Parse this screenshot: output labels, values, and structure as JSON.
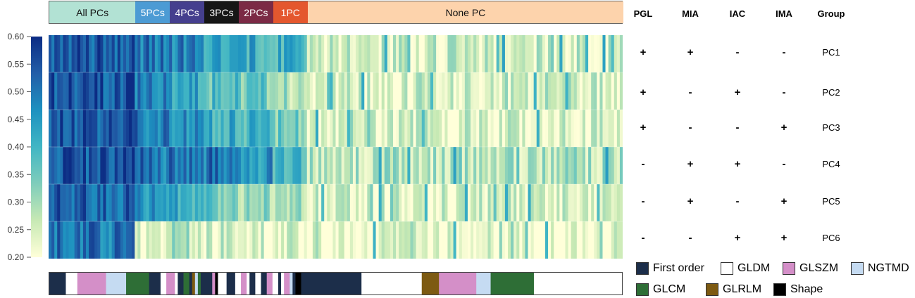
{
  "group_bar": [
    {
      "label": "All PCs",
      "color": "#b2e2d4",
      "start": 0,
      "end": 30,
      "dark": false
    },
    {
      "label": "5PCs",
      "color": "#4c9bd4",
      "start": 30,
      "end": 42,
      "dark": true
    },
    {
      "label": "4PCs",
      "color": "#453f8e",
      "start": 42,
      "end": 54,
      "dark": true
    },
    {
      "label": "3PCs",
      "color": "#161616",
      "start": 54,
      "end": 66,
      "dark": true
    },
    {
      "label": "2PCs",
      "color": "#7b2a45",
      "start": 66,
      "end": 78,
      "dark": true
    },
    {
      "label": "1PC",
      "color": "#e4572e",
      "start": 78,
      "end": 90,
      "dark": true
    },
    {
      "label": "None PC",
      "color": "#fdd3ac",
      "start": 90,
      "end": 200,
      "dark": false
    }
  ],
  "table": {
    "headers": [
      "PGL",
      "MIA",
      "IAC",
      "IMA",
      "Group"
    ],
    "rows": [
      {
        "PGL": "+",
        "MIA": "+",
        "IAC": "-",
        "IMA": "-",
        "Group": "PC1"
      },
      {
        "PGL": "+",
        "MIA": "-",
        "IAC": "+",
        "IMA": "-",
        "Group": "PC2"
      },
      {
        "PGL": "+",
        "MIA": "-",
        "IAC": "-",
        "IMA": "+",
        "Group": "PC3"
      },
      {
        "PGL": "-",
        "MIA": "+",
        "IAC": "+",
        "IMA": "-",
        "Group": "PC4"
      },
      {
        "PGL": "-",
        "MIA": "+",
        "IAC": "-",
        "IMA": "+",
        "Group": "PC5"
      },
      {
        "PGL": "-",
        "MIA": "-",
        "IAC": "+",
        "IMA": "+",
        "Group": "PC6"
      }
    ]
  },
  "legend": [
    {
      "label": "First order",
      "color": "#1c2e4a"
    },
    {
      "label": "GLDM",
      "color": "#ffffff"
    },
    {
      "label": "GLSZM",
      "color": "#d48fc8"
    },
    {
      "label": "NGTMD",
      "color": "#c5dbf2"
    },
    {
      "label": "GLCM",
      "color": "#2e6e36"
    },
    {
      "label": "GLRLM",
      "color": "#7d5a12"
    },
    {
      "label": "Shape",
      "color": "#000000"
    }
  ],
  "chart_data": {
    "type": "heatmap",
    "rows": [
      "PC1",
      "PC2",
      "PC3",
      "PC4",
      "PC5",
      "PC6"
    ],
    "n_features": 200,
    "colorbar": {
      "ticks": [
        "0.60",
        "0.55",
        "0.50",
        "0.45",
        "0.40",
        "0.35",
        "0.30",
        "0.25",
        "0.20"
      ],
      "range": [
        0.2,
        0.6
      ],
      "colors": [
        "#ffffd9",
        "#c7e9b4",
        "#7fcdbb",
        "#41b6c4",
        "#1d91c0",
        "#225ea8",
        "#0c2c84"
      ]
    },
    "group_sizes": [
      30,
      12,
      12,
      12,
      12,
      12,
      110
    ],
    "row_means": {
      "All PCs": [
        0.55,
        0.55,
        0.55,
        0.55,
        0.53,
        0.5
      ],
      "5PCs": [
        0.5,
        0.5,
        0.5,
        0.5,
        0.45,
        0.25
      ],
      "4PCs": [
        0.48,
        0.42,
        0.47,
        0.5,
        0.42,
        0.28
      ],
      "3PCs": [
        0.45,
        0.38,
        0.42,
        0.5,
        0.35,
        0.25
      ],
      "2PCs": [
        0.42,
        0.35,
        0.4,
        0.45,
        0.32,
        0.24
      ],
      "1PC": [
        0.4,
        0.3,
        0.35,
        0.4,
        0.28,
        0.23
      ],
      "None PC": [
        0.25,
        0.24,
        0.24,
        0.28,
        0.24,
        0.22
      ]
    },
    "category_blocks": [
      {
        "cat": "First order",
        "n": 6
      },
      {
        "cat": "GLDM",
        "n": 4
      },
      {
        "cat": "GLSZM",
        "n": 10
      },
      {
        "cat": "NGTMD",
        "n": 7
      },
      {
        "cat": "GLCM",
        "n": 8
      },
      {
        "cat": "First order",
        "n": 4
      },
      {
        "cat": "GLDM",
        "n": 2
      },
      {
        "cat": "GLSZM",
        "n": 3
      },
      {
        "cat": "GLDM",
        "n": 1
      },
      {
        "cat": "First order",
        "n": 2
      },
      {
        "cat": "GLCM",
        "n": 2
      },
      {
        "cat": "First order",
        "n": 1
      },
      {
        "cat": "GLRLM",
        "n": 1
      },
      {
        "cat": "NGTMD",
        "n": 1
      },
      {
        "cat": "GLCM",
        "n": 1
      },
      {
        "cat": "First order",
        "n": 4
      },
      {
        "cat": "GLSZM",
        "n": 1
      },
      {
        "cat": "Shape",
        "n": 1
      },
      {
        "cat": "GLDM",
        "n": 3
      },
      {
        "cat": "First order",
        "n": 3
      },
      {
        "cat": "GLDM",
        "n": 2
      },
      {
        "cat": "GLSZM",
        "n": 2
      },
      {
        "cat": "GLDM",
        "n": 1
      },
      {
        "cat": "First order",
        "n": 2
      },
      {
        "cat": "GLDM",
        "n": 2
      },
      {
        "cat": "First order",
        "n": 2
      },
      {
        "cat": "GLSZM",
        "n": 2
      },
      {
        "cat": "GLDM",
        "n": 2
      },
      {
        "cat": "First order",
        "n": 1
      },
      {
        "cat": "GLDM",
        "n": 1
      },
      {
        "cat": "GLSZM",
        "n": 2
      },
      {
        "cat": "NGTMD",
        "n": 1
      },
      {
        "cat": "First order",
        "n": 1
      },
      {
        "cat": "Shape",
        "n": 2
      },
      {
        "cat": "First order",
        "n": 21
      },
      {
        "cat": "GLDM",
        "n": 21
      },
      {
        "cat": "GLRLM",
        "n": 6
      },
      {
        "cat": "GLSZM",
        "n": 13
      },
      {
        "cat": "NGTMD",
        "n": 5
      },
      {
        "cat": "GLCM",
        "n": 15
      }
    ]
  }
}
